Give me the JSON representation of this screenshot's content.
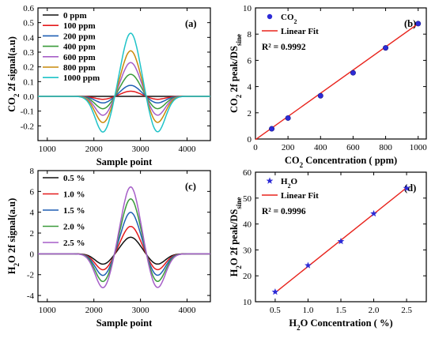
{
  "chart_data": [
    {
      "id": "a",
      "type": "line",
      "panel_label": "(a)",
      "xlabel": "Sample point",
      "ylabel": "CO2 2f signal(a.u)",
      "xlim": [
        800,
        4500
      ],
      "ylim": [
        -0.3,
        0.6
      ],
      "xticks": [
        1000,
        2000,
        3000,
        4000
      ],
      "yticks": [
        -0.2,
        -0.1,
        0.0,
        0.1,
        0.2,
        0.3,
        0.4,
        0.5,
        0.6
      ],
      "ytick_labels": [
        "-0.2",
        "-0.1",
        "0.0",
        "0.1",
        "0.2",
        "0.3",
        "0.4",
        "0.5",
        "0.6"
      ],
      "legend_position": "top-left",
      "series": [
        {
          "name": "0 ppm",
          "color": "#111111",
          "peak": 0.0,
          "trough": 0.0
        },
        {
          "name": "100 ppm",
          "color": "#e41a1c",
          "peak": 0.035,
          "trough": -0.02
        },
        {
          "name": "200 ppm",
          "color": "#1f5fb4",
          "peak": 0.075,
          "trough": -0.045
        },
        {
          "name": "400 ppm",
          "color": "#3a9a3a",
          "peak": 0.15,
          "trough": -0.085
        },
        {
          "name": "600 ppm",
          "color": "#a65fc8",
          "peak": 0.23,
          "trough": -0.13
        },
        {
          "name": "800 ppm",
          "color": "#c98a0a",
          "peak": 0.31,
          "trough": -0.18
        },
        {
          "name": "1000 ppm",
          "color": "#1fc3c8",
          "peak": 0.43,
          "trough": -0.245
        }
      ]
    },
    {
      "id": "b",
      "type": "scatter",
      "panel_label": "(b)",
      "xlabel": "CO2 Concentration ( ppm)",
      "ylabel": "CO2 2f peak/DSsine",
      "xlim": [
        0,
        1050
      ],
      "ylim": [
        0,
        10
      ],
      "xticks": [
        0,
        200,
        400,
        600,
        800,
        1000
      ],
      "yticks": [
        0,
        2,
        4,
        6,
        8,
        10
      ],
      "legend_position": "top-left",
      "marker": "circle",
      "marker_color": "#2d2bd6",
      "fit_color": "#e8231c",
      "points_x": [
        100,
        200,
        400,
        600,
        800,
        1000
      ],
      "points_y": [
        0.78,
        1.6,
        3.3,
        5.05,
        6.95,
        8.8
      ],
      "fit": {
        "x": [
          0,
          1000
        ],
        "y": [
          -0.05,
          8.8
        ]
      },
      "legend_series": "CO2",
      "legend_fit": "Linear Fit",
      "r2": "R² = 0.9992"
    },
    {
      "id": "c",
      "type": "line",
      "panel_label": "(c)",
      "xlabel": "Sample point",
      "ylabel": "H2O 2f signal(a.u)",
      "xlim": [
        800,
        4500
      ],
      "ylim": [
        -4.6,
        8
      ],
      "xticks": [
        1000,
        2000,
        3000,
        4000
      ],
      "yticks": [
        -4,
        -2,
        0,
        2,
        4,
        6,
        8
      ],
      "ytick_labels": [
        "-4",
        "-2",
        "0",
        "2",
        "4",
        "6",
        "8"
      ],
      "legend_position": "top-left",
      "series": [
        {
          "name": "0.5 %",
          "color": "#111111",
          "peak": 1.6,
          "trough": -1.0
        },
        {
          "name": "1.0 %",
          "color": "#e41a1c",
          "peak": 2.65,
          "trough": -1.55
        },
        {
          "name": "1.5 %",
          "color": "#1f5fb4",
          "peak": 4.0,
          "trough": -2.1
        },
        {
          "name": "2.0 %",
          "color": "#3a9a3a",
          "peak": 5.3,
          "trough": -2.7
        },
        {
          "name": "2.5 %",
          "color": "#a65fc8",
          "peak": 6.45,
          "trough": -3.3
        }
      ]
    },
    {
      "id": "d",
      "type": "scatter",
      "panel_label": "(d)",
      "xlabel": "H2O Concentration ( %)",
      "ylabel": "H2O 2f peak/DSsine",
      "xlim": [
        0.2,
        2.8
      ],
      "ylim": [
        10,
        60
      ],
      "xticks": [
        0.5,
        1.0,
        1.5,
        2.0,
        2.5
      ],
      "yticks": [
        10,
        20,
        30,
        40,
        50,
        60
      ],
      "legend_position": "top-left",
      "marker": "star",
      "marker_color": "#2d2bd6",
      "fit_color": "#e8231c",
      "points_x": [
        0.5,
        1.0,
        1.5,
        2.0,
        2.5
      ],
      "points_y": [
        13.8,
        24.0,
        33.3,
        44.0,
        53.8
      ],
      "fit": {
        "x": [
          0.5,
          2.5
        ],
        "y": [
          13.5,
          54.0
        ]
      },
      "legend_series": "H2O",
      "legend_fit": "Linear Fit",
      "r2": "R² = 0.9996"
    }
  ]
}
